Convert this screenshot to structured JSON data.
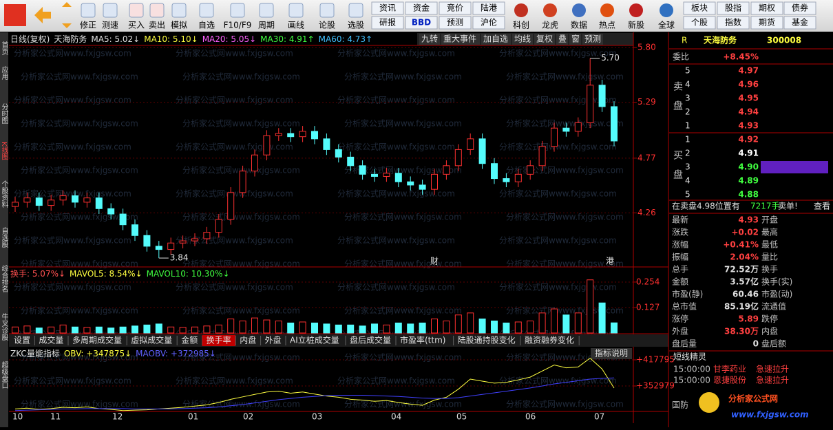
{
  "toolbar": {
    "buttons": [
      "修正",
      "测速",
      "买入",
      "卖出",
      "模拟",
      "自选",
      "F10/F9",
      "周期",
      "画线",
      "论股",
      "选股"
    ],
    "stacked": [
      [
        "资讯",
        "研报"
      ],
      [
        "资金",
        "BBD"
      ],
      [
        "竞价",
        "预测"
      ],
      [
        "陆港",
        "沪伦"
      ]
    ],
    "icons": [
      "科创",
      "龙虎",
      "数据",
      "热点",
      "新股",
      "全球"
    ],
    "stacked2": [
      [
        "板块",
        "个股"
      ],
      [
        "股指",
        "指数"
      ],
      [
        "期权",
        "期货"
      ],
      [
        "债券",
        "基金"
      ]
    ]
  },
  "sidebar": [
    "首页",
    "应用",
    "分时图",
    "K线图",
    "个股资料",
    "自选股",
    "综合排名",
    "牛叉诊股",
    "超级盘口"
  ],
  "watermark": "分析家公式网www.fxjgsw.com",
  "chart_header": {
    "items": [
      {
        "text": "日线(复权)",
        "color": "#e0e0e0"
      },
      {
        "text": "天海防务",
        "color": "#e0e0e0"
      },
      {
        "text": "MA5: 5.02↓",
        "color": "#e0e0e0"
      },
      {
        "text": "MA10: 5.10↓",
        "color": "#ffff40"
      },
      {
        "text": "MA20: 5.05↓",
        "color": "#ff60ff"
      },
      {
        "text": "MA30: 4.91↑",
        "color": "#40ff40"
      },
      {
        "text": "MA60: 4.73↑",
        "color": "#40c0ff"
      }
    ],
    "buttons": [
      "九转",
      "重大事件",
      "加自选",
      "均线",
      "复权",
      "叠",
      "窗",
      "预测"
    ]
  },
  "volume_header": [
    {
      "text": "换手: 5.07%↓",
      "color": "#ff5050"
    },
    {
      "text": "MAVOL5: 8.54%↓",
      "color": "#ffff40"
    },
    {
      "text": "MAVOL10: 10.30%↓",
      "color": "#40ff40"
    }
  ],
  "tabs": {
    "items": [
      "设置",
      "成交量",
      "多周期成交量",
      "虚拟成交量",
      "金额",
      "换手率",
      "内盘",
      "外盘",
      "AI立桩成交量",
      "盘后成交量",
      "市盈率(ttm)",
      "陆股通持股变化",
      "融资融券变化"
    ],
    "active": "换手率"
  },
  "obv_header": {
    "items": [
      {
        "text": "ZKC量能指标",
        "color": "#e0e0e0"
      },
      {
        "text": "OBV: +347875↓",
        "color": "#ffff40"
      },
      {
        "text": "MAOBV: +372985↓",
        "color": "#6060ff"
      }
    ],
    "button": "指标说明"
  },
  "months": [
    "10",
    "11",
    "12",
    "01",
    "02",
    "03",
    "04",
    "05",
    "06",
    "07"
  ],
  "event_marks": [
    "财",
    "港"
  ],
  "chart_data": [
    {
      "type": "candlestick",
      "ylim": [
        3.77,
        5.82
      ],
      "yticks": [
        {
          "value": 5.8,
          "label": "5.80"
        },
        5.29,
        4.77,
        4.26
      ],
      "max_label": {
        "value": 5.7,
        "label": "5.70"
      },
      "min_label": 3.84,
      "open": [
        4.32,
        4.36,
        4.4,
        4.33,
        4.38,
        4.42,
        4.36,
        4.4,
        4.3,
        4.25,
        4.15,
        4.05,
        3.95,
        3.92,
        3.98,
        4.0,
        4.02,
        4.08,
        4.2,
        4.45,
        4.65,
        4.8,
        4.98,
        5.0,
        4.97,
        5.02,
        4.95,
        4.85,
        4.78,
        4.7,
        4.62,
        4.6,
        4.63,
        4.55,
        4.52,
        4.48,
        4.62,
        4.7,
        4.85,
        4.95,
        4.72,
        4.58,
        4.55,
        4.62,
        4.7,
        4.88,
        5.05,
        5.02,
        5.1,
        5.45,
        5.25
      ],
      "high": [
        4.41,
        4.45,
        4.45,
        4.43,
        4.47,
        4.47,
        4.45,
        4.45,
        4.35,
        4.3,
        4.2,
        4.1,
        4.0,
        4.03,
        4.05,
        4.07,
        4.13,
        4.25,
        4.5,
        4.7,
        4.85,
        5.03,
        5.05,
        5.05,
        5.07,
        5.07,
        5.0,
        4.9,
        4.83,
        4.75,
        4.67,
        4.68,
        4.68,
        4.6,
        4.57,
        4.67,
        4.75,
        4.9,
        5.0,
        5.0,
        4.77,
        4.63,
        4.67,
        4.75,
        4.93,
        5.1,
        5.1,
        5.15,
        5.7,
        5.5,
        5.3
      ],
      "low": [
        4.27,
        4.31,
        4.28,
        4.28,
        4.33,
        4.31,
        4.31,
        4.25,
        4.2,
        4.1,
        4.0,
        3.9,
        3.84,
        3.87,
        3.93,
        3.95,
        3.97,
        4.03,
        4.15,
        4.4,
        4.6,
        4.75,
        4.93,
        4.92,
        4.92,
        4.9,
        4.8,
        4.73,
        4.65,
        4.57,
        4.55,
        4.55,
        4.5,
        4.47,
        4.43,
        4.43,
        4.57,
        4.65,
        4.8,
        4.67,
        4.53,
        4.5,
        4.5,
        4.57,
        4.65,
        4.83,
        4.97,
        4.97,
        5.05,
        5.2,
        4.88
      ],
      "close": [
        4.36,
        4.4,
        4.33,
        4.38,
        4.42,
        4.36,
        4.4,
        4.3,
        4.25,
        4.15,
        4.05,
        3.95,
        3.92,
        3.98,
        4.0,
        4.02,
        4.08,
        4.2,
        4.45,
        4.65,
        4.8,
        4.98,
        5.0,
        4.97,
        5.02,
        4.95,
        4.85,
        4.78,
        4.7,
        4.62,
        4.6,
        4.63,
        4.55,
        4.52,
        4.48,
        4.62,
        4.7,
        4.85,
        4.95,
        4.72,
        4.58,
        4.55,
        4.62,
        4.7,
        4.88,
        5.05,
        5.02,
        5.1,
        5.45,
        5.25,
        4.93
      ],
      "up_color": "#ff3030",
      "down_color": "#54fcfc"
    },
    {
      "type": "bar",
      "ylim": [
        0,
        0.271
      ],
      "yticks": [
        0.254,
        0.127
      ],
      "values": [
        0.03,
        0.035,
        0.025,
        0.03,
        0.04,
        0.03,
        0.028,
        0.03,
        0.025,
        0.03,
        0.035,
        0.04,
        0.045,
        0.03,
        0.028,
        0.03,
        0.035,
        0.04,
        0.07,
        0.06,
        0.075,
        0.065,
        0.06,
        0.05,
        0.055,
        0.05,
        0.045,
        0.04,
        0.04,
        0.035,
        0.045,
        0.04,
        0.05,
        0.045,
        0.05,
        0.07,
        0.06,
        0.09,
        0.1,
        0.07,
        0.06,
        0.05,
        0.055,
        0.06,
        0.1,
        0.12,
        0.09,
        0.1,
        0.265,
        0.15,
        0.0507
      ]
    },
    {
      "type": "line",
      "ylim": [
        289869,
        422912
      ],
      "yticks": [
        {
          "value": 417795,
          "label": "+417795"
        },
        {
          "value": 352979,
          "label": "+352979"
        }
      ],
      "series": [
        {
          "name": "OBV",
          "color": "#ffff40",
          "values": [
            296000,
            298000,
            295000,
            297000,
            300000,
            299000,
            301000,
            297000,
            295000,
            292000,
            293000,
            294000,
            296000,
            298000,
            300000,
            303000,
            306000,
            312000,
            320000,
            326000,
            332000,
            338000,
            340000,
            335000,
            338000,
            333000,
            328000,
            325000,
            320000,
            318000,
            315000,
            317000,
            312000,
            308000,
            305000,
            318000,
            325000,
            345000,
            370000,
            365000,
            360000,
            362000,
            368000,
            375000,
            390000,
            405000,
            398000,
            400000,
            422000,
            395000,
            347875
          ]
        },
        {
          "name": "MAOBV",
          "color": "#4040ff",
          "values": [
            292000,
            293000,
            294000,
            295000,
            296000,
            296000,
            297000,
            297000,
            297000,
            297000,
            296000,
            296000,
            296000,
            296000,
            297000,
            298000,
            299000,
            301000,
            304000,
            307000,
            311000,
            315000,
            319000,
            322000,
            325000,
            327000,
            329000,
            330000,
            330000,
            330000,
            329000,
            328000,
            327000,
            325000,
            323000,
            322000,
            322000,
            324000,
            328000,
            332000,
            336000,
            340000,
            344000,
            348000,
            353000,
            358000,
            362000,
            366000,
            370000,
            372000,
            372985
          ]
        }
      ]
    }
  ],
  "quote": {
    "prefix": "R",
    "name": "天海防务",
    "code": "300008",
    "weibi_label": "委比",
    "weibi": "+8.45%",
    "sell_label": "卖盘",
    "buy_label": "买盘",
    "sell": [
      {
        "level": "5",
        "price": "4.97",
        "color": "#ff4040"
      },
      {
        "level": "4",
        "price": "4.96",
        "color": "#ff4040"
      },
      {
        "level": "3",
        "price": "4.95",
        "color": "#ff4040"
      },
      {
        "level": "2",
        "price": "4.94",
        "color": "#ff4040"
      },
      {
        "level": "1",
        "price": "4.93",
        "color": "#ff4040"
      }
    ],
    "buy": [
      {
        "level": "1",
        "price": "4.92",
        "color": "#ff4040"
      },
      {
        "level": "2",
        "price": "4.91",
        "color": "#ffffff"
      },
      {
        "level": "3",
        "price": "4.90",
        "color": "#40ff40"
      },
      {
        "level": "4",
        "price": "4.89",
        "color": "#40ff40"
      },
      {
        "level": "5",
        "price": "4.88",
        "color": "#40ff40"
      }
    ],
    "notice": [
      "在卖盘4.98位置有",
      "7217手",
      "卖单!",
      "查看"
    ],
    "stats": [
      [
        "最新",
        "4.93",
        "开盘"
      ],
      [
        "涨跌",
        "+0.02",
        "最高"
      ],
      [
        "涨幅",
        "+0.41%",
        "最低"
      ],
      [
        "振幅",
        "2.04%",
        "量比"
      ],
      [
        "总手",
        "72.52万",
        "换手"
      ],
      [
        "金额",
        "3.57亿",
        "换手(实)"
      ],
      [
        "市盈(静)",
        "60.46",
        "市盈(动)"
      ],
      [
        "总市值",
        "85.19亿",
        "流通值"
      ],
      [
        "涨停",
        "5.89",
        "跌停"
      ],
      [
        "外盘",
        "38.30万",
        "内盘"
      ],
      [
        "盘后量",
        "0",
        "盘后额"
      ]
    ]
  },
  "short_line": {
    "title": "短线精灵",
    "items": [
      [
        "15:00:00",
        "甘李药业",
        "急速拉升"
      ],
      [
        "15:00:00",
        "恩捷股份",
        "急速拉升"
      ]
    ]
  },
  "footer": {
    "sector": "国防",
    "logo": "分析家公式网",
    "url": "www.fxjgsw.com"
  }
}
